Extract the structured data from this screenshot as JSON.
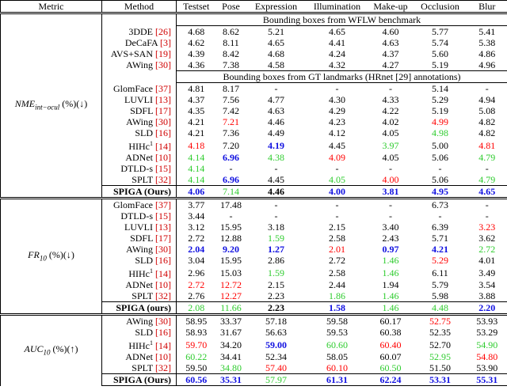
{
  "header": [
    "Metric",
    "Method",
    "Testset",
    "Pose",
    "Expression",
    "Illumination",
    "Make-up",
    "Occlusion",
    "Blur"
  ],
  "sections": [
    {
      "metric": {
        "name": "NME",
        "sub": "int−ocul",
        "unit": "(%)(↓)"
      },
      "rows": [
        {
          "subheader": "Bounding boxes from WFLW benchmark"
        },
        {
          "method": "3DDE",
          "ref": "[26]",
          "values": [
            "4.68",
            "8.62",
            "5.21",
            "4.65",
            "4.60",
            "5.77",
            "5.41"
          ],
          "styles": [
            null,
            null,
            null,
            null,
            null,
            null,
            null
          ]
        },
        {
          "method": "DeCaFA",
          "ref": "[3]",
          "values": [
            "4.62",
            "8.11",
            "4.65",
            "4.41",
            "4.63",
            "5.74",
            "5.38"
          ],
          "styles": [
            null,
            null,
            null,
            null,
            null,
            null,
            null
          ]
        },
        {
          "method": "AVS+SAN",
          "ref": "[19]",
          "values": [
            "4.39",
            "8.42",
            "4.68",
            "4.24",
            "4.37",
            "5.60",
            "4.86"
          ],
          "styles": [
            null,
            null,
            null,
            null,
            null,
            null,
            null
          ]
        },
        {
          "method": "AWing",
          "ref": "[30]",
          "values": [
            "4.36",
            "7.38",
            "4.58",
            "4.32",
            "4.27",
            "5.19",
            "4.96"
          ],
          "styles": [
            null,
            null,
            null,
            null,
            null,
            null,
            null
          ]
        },
        {
          "subheader": "Bounding boxes from GT landmarks (HRnet [29] annotations)"
        },
        {
          "method": "GlomFace",
          "ref": "[37]",
          "values": [
            "4.81",
            "8.17",
            "-",
            "-",
            "-",
            "5.14",
            "-"
          ],
          "styles": [
            null,
            null,
            null,
            null,
            null,
            null,
            null
          ]
        },
        {
          "method": "LUVLI",
          "ref": "[13]",
          "values": [
            "4.37",
            "7.56",
            "4.77",
            "4.30",
            "4.33",
            "5.29",
            "4.94"
          ],
          "styles": [
            null,
            null,
            null,
            null,
            null,
            null,
            null
          ]
        },
        {
          "method": "SDFL",
          "ref": "[17]",
          "values": [
            "4.35",
            "7.42",
            "4.63",
            "4.29",
            "4.22",
            "5.19",
            "5.08"
          ],
          "styles": [
            null,
            null,
            null,
            null,
            null,
            null,
            null
          ]
        },
        {
          "method": "AWing",
          "ref": "[30]",
          "values": [
            "4.21",
            "7.21",
            "4.46",
            "4.23",
            "4.02",
            "4.99",
            "4.82"
          ],
          "styles": [
            null,
            "r",
            null,
            null,
            null,
            "r",
            null
          ]
        },
        {
          "method": "SLD",
          "ref": "[16]",
          "values": [
            "4.21",
            "7.36",
            "4.49",
            "4.12",
            "4.05",
            "4.98",
            "4.82"
          ],
          "styles": [
            null,
            null,
            null,
            null,
            null,
            "g",
            null
          ]
        },
        {
          "method": "HIHc",
          "note": "1",
          "ref": "[14]",
          "values": [
            "4.18",
            "7.20",
            "4.19",
            "4.45",
            "3.97",
            "5.00",
            "4.81"
          ],
          "styles": [
            "r",
            null,
            "b",
            null,
            "g",
            null,
            "r"
          ]
        },
        {
          "method": "ADNet",
          "ref": "[10]",
          "values": [
            "4.14",
            "6.96",
            "4.38",
            "4.09",
            "4.05",
            "5.06",
            "4.79"
          ],
          "styles": [
            "g",
            "b",
            "g",
            "r",
            null,
            null,
            "g"
          ]
        },
        {
          "method": "DTLD-s",
          "ref": "[15]",
          "values": [
            "4.14",
            "-",
            "-",
            "-",
            "-",
            "-",
            "-"
          ],
          "styles": [
            "g",
            null,
            null,
            null,
            null,
            null,
            null
          ]
        },
        {
          "method": "SPLT",
          "ref": "[32]",
          "values": [
            "4.14",
            "6.96",
            "4.45",
            "4.05",
            "4.00",
            "5.06",
            "4.79"
          ],
          "styles": [
            "g",
            "b",
            null,
            "g",
            "r",
            null,
            "g"
          ]
        },
        {
          "method": "SPIGA (Ours)",
          "bold": true,
          "values": [
            "4.06",
            "7.14",
            "4.46",
            "4.00",
            "3.81",
            "4.95",
            "4.65"
          ],
          "styles": [
            "b",
            "g",
            "k",
            "b",
            "b",
            "b",
            "b"
          ]
        }
      ]
    },
    {
      "metric": {
        "name": "FR",
        "sub": "10",
        "unit": "(%)(↓)"
      },
      "rows": [
        {
          "method": "GlomFace",
          "ref": "[37]",
          "values": [
            "3.77",
            "17.48",
            "-",
            "-",
            "-",
            "6.73",
            "-"
          ],
          "styles": [
            null,
            null,
            null,
            null,
            null,
            null,
            null
          ]
        },
        {
          "method": "DTLD-s",
          "ref": "[15]",
          "values": [
            "3.44",
            "-",
            "-",
            "-",
            "-",
            "-",
            "-"
          ],
          "styles": [
            null,
            null,
            null,
            null,
            null,
            null,
            null
          ]
        },
        {
          "method": "LUVLI",
          "ref": "[13]",
          "values": [
            "3.12",
            "15.95",
            "3.18",
            "2.15",
            "3.40",
            "6.39",
            "3.23"
          ],
          "styles": [
            null,
            null,
            null,
            null,
            null,
            null,
            "r"
          ]
        },
        {
          "method": "SDFL",
          "ref": "[17]",
          "values": [
            "2.72",
            "12.88",
            "1.59",
            "2.58",
            "2.43",
            "5.71",
            "3.62"
          ],
          "styles": [
            null,
            null,
            "g",
            null,
            null,
            null,
            null
          ]
        },
        {
          "method": "AWing",
          "ref": "[30]",
          "values": [
            "2.04",
            "9.20",
            "1.27",
            "2.01",
            "0.97",
            "4.21",
            "2.72"
          ],
          "styles": [
            "b",
            "b",
            "b",
            "r",
            "b",
            "b",
            "g"
          ]
        },
        {
          "method": "SLD",
          "ref": "[16]",
          "values": [
            "3.04",
            "15.95",
            "2.86",
            "2.72",
            "1.46",
            "5.29",
            "4.01"
          ],
          "styles": [
            null,
            null,
            null,
            null,
            "g",
            "r",
            null
          ]
        },
        {
          "method": "HIHc",
          "note": "1",
          "ref": "[14]",
          "values": [
            "2.96",
            "15.03",
            "1.59",
            "2.58",
            "1.46",
            "6.11",
            "3.49"
          ],
          "styles": [
            null,
            null,
            "g",
            null,
            "g",
            null,
            null
          ]
        },
        {
          "method": "ADNet",
          "ref": "[10]",
          "values": [
            "2.72",
            "12.72",
            "2.15",
            "2.44",
            "1.94",
            "5.79",
            "3.54"
          ],
          "styles": [
            "r",
            "r",
            null,
            null,
            null,
            null,
            null
          ]
        },
        {
          "method": "SPLT",
          "ref": "[32]",
          "values": [
            "2.76",
            "12.27",
            "2.23",
            "1.86",
            "1.46",
            "5.98",
            "3.88"
          ],
          "styles": [
            null,
            "r",
            null,
            "g",
            "g",
            null,
            null
          ]
        },
        {
          "method": "SPIGA (ours)",
          "bold": true,
          "values": [
            "2.08",
            "11.66",
            "2.23",
            "1.58",
            "1.46",
            "4.48",
            "2.20"
          ],
          "styles": [
            "g",
            "g",
            "k",
            "b",
            "g",
            "g",
            "b"
          ]
        }
      ]
    },
    {
      "metric": {
        "name": "AUC",
        "sub": "10",
        "unit": "(%)(↑)"
      },
      "rows": [
        {
          "method": "AWing",
          "ref": "[30]",
          "values": [
            "58.95",
            "33.37",
            "57.18",
            "59.58",
            "60.17",
            "52.75",
            "53.93"
          ],
          "styles": [
            null,
            null,
            null,
            null,
            null,
            "r",
            null
          ]
        },
        {
          "method": "SLD",
          "ref": "[16]",
          "values": [
            "58.93",
            "31.67",
            "56.63",
            "59.53",
            "60.38",
            "52.35",
            "53.29"
          ],
          "styles": [
            null,
            null,
            null,
            null,
            null,
            null,
            null
          ]
        },
        {
          "method": "HIHc",
          "note": "1",
          "ref": "[14]",
          "values": [
            "59.70",
            "34.20",
            "59.00",
            "60.60",
            "60.40",
            "52.70",
            "54.90"
          ],
          "styles": [
            "r",
            null,
            "b",
            "g",
            "r",
            null,
            "g"
          ]
        },
        {
          "method": "ADNet",
          "ref": "[10]",
          "values": [
            "60.22",
            "34.41",
            "52.34",
            "58.05",
            "60.07",
            "52.95",
            "54.80"
          ],
          "styles": [
            "g",
            null,
            null,
            null,
            null,
            "g",
            "r"
          ]
        },
        {
          "method": "SPLT",
          "ref": "[32]",
          "values": [
            "59.50",
            "34.80",
            "57.40",
            "60.10",
            "60.50",
            "51.50",
            "53.90"
          ],
          "styles": [
            null,
            "g",
            "r",
            "r",
            "g",
            null,
            null
          ]
        },
        {
          "method": "SPIGA (Ours)",
          "bold": true,
          "values": [
            "60.56",
            "35.31",
            "57.97",
            "61.31",
            "62.24",
            "53.31",
            "55.31"
          ],
          "styles": [
            "b",
            "b",
            "g",
            "b",
            "b",
            "b",
            "b"
          ]
        }
      ]
    }
  ]
}
